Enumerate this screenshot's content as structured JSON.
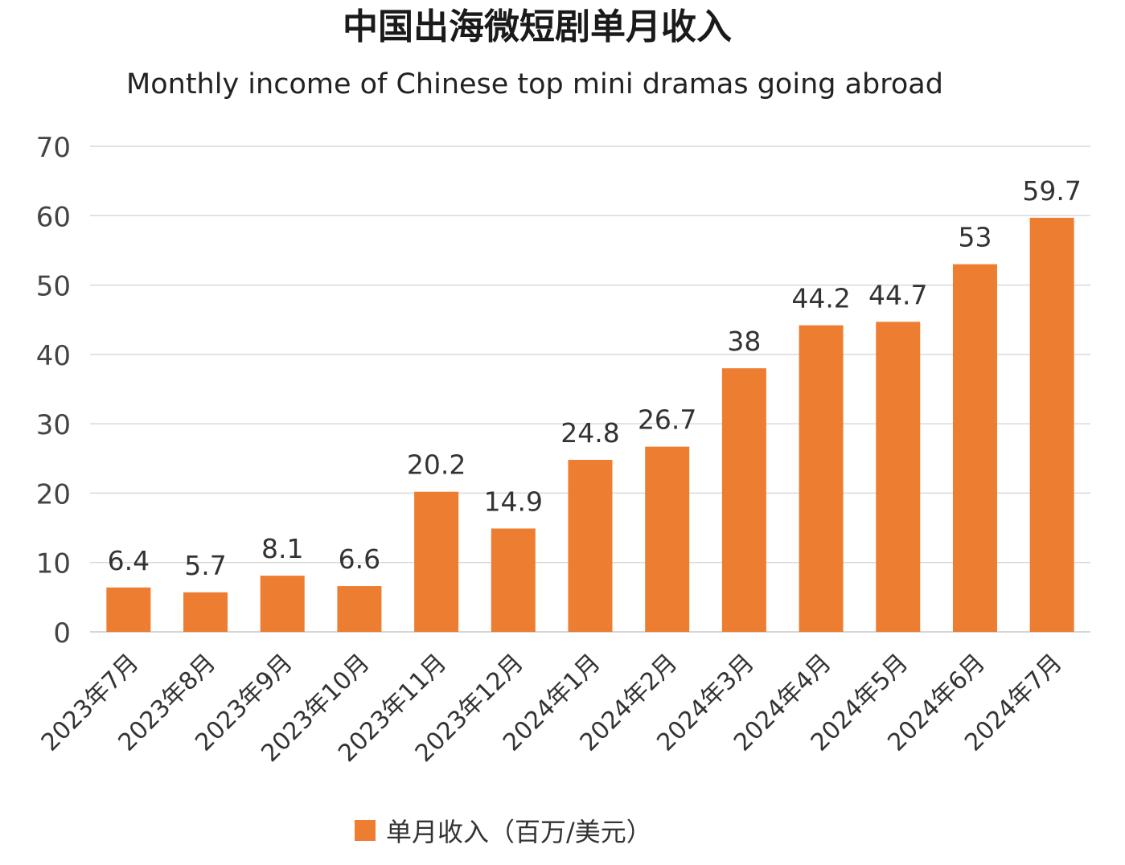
{
  "chart_data": {
    "type": "bar",
    "title": "中国出海微短剧单月收入",
    "subtitle": "Monthly income of Chinese top mini dramas going abroad",
    "categories": [
      "2023年7月",
      "2023年8月",
      "2023年9月",
      "2023年10月",
      "2023年11月",
      "2023年12月",
      "2024年1月",
      "2024年2月",
      "2024年3月",
      "2024年4月",
      "2024年5月",
      "2024年6月",
      "2024年7月"
    ],
    "series": [
      {
        "name": "单月收入（百万/美元）",
        "values": [
          6.4,
          5.7,
          8.1,
          6.6,
          20.2,
          14.9,
          24.8,
          26.7,
          38,
          44.2,
          44.7,
          53,
          59.7
        ],
        "color": "#ED7D31"
      }
    ],
    "data_labels": [
      "6.4",
      "5.7",
      "8.1",
      "6.6",
      "20.2",
      "14.9",
      "24.8",
      "26.7",
      "38",
      "44.2",
      "44.7",
      "53",
      "59.7"
    ],
    "ylim": [
      0,
      70
    ],
    "yticks": [
      0,
      10,
      20,
      30,
      40,
      50,
      60,
      70
    ],
    "grid": true,
    "legend_position": "bottom",
    "xlabel": "",
    "ylabel": ""
  }
}
